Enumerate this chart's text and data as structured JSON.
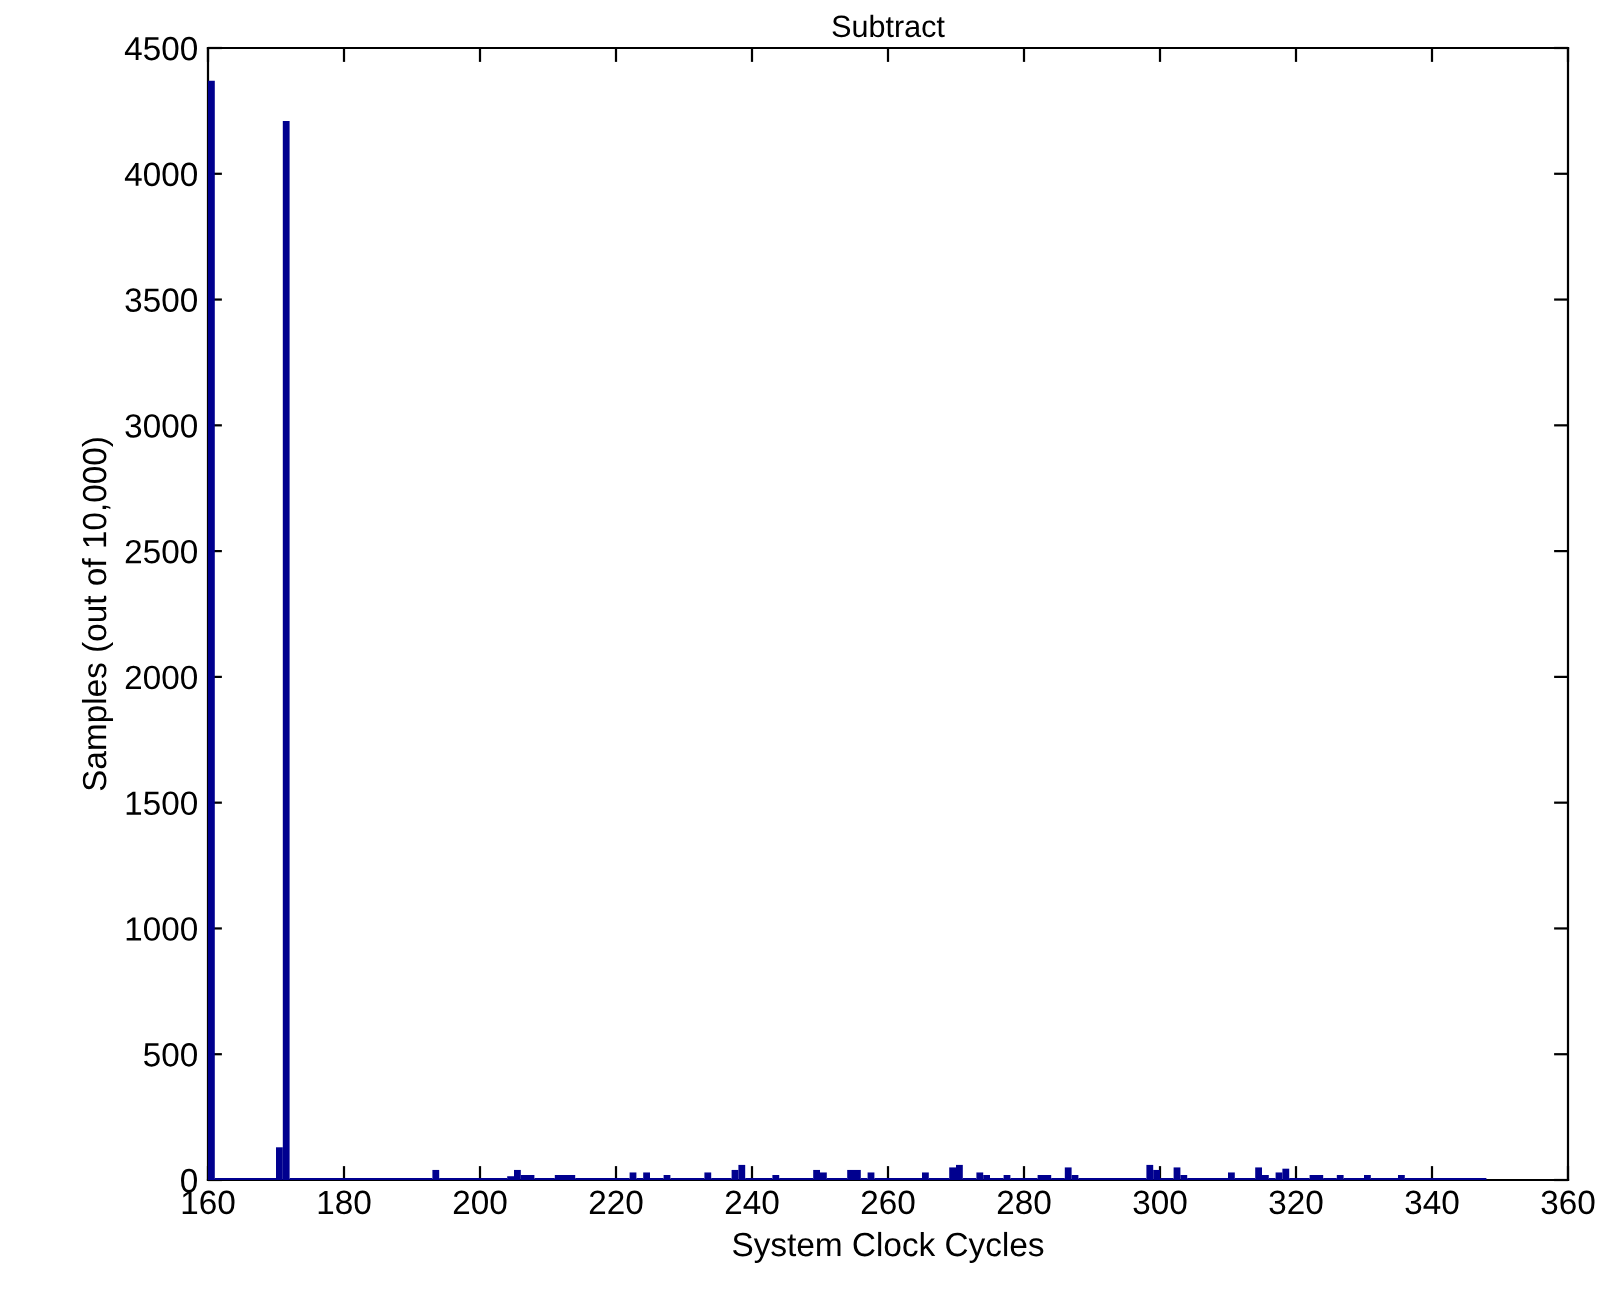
{
  "chart_data": {
    "type": "histogram",
    "title": "Subtract",
    "xlabel": "System Clock Cycles",
    "ylabel": "Samples (out of 10,000)",
    "color": "#00008f",
    "bins": [
      160,
      161,
      170,
      171,
      172,
      193,
      194,
      204,
      205,
      206,
      208,
      211,
      214,
      222,
      223,
      224,
      225,
      227,
      228,
      233,
      234,
      237,
      238,
      239,
      243,
      244,
      249,
      250,
      251,
      254,
      256,
      257,
      258,
      265,
      266,
      269,
      270,
      271,
      273,
      274,
      275,
      277,
      278,
      282,
      284,
      286,
      287,
      288,
      298,
      299,
      300,
      302,
      303,
      304,
      310,
      311,
      314,
      315,
      316,
      317,
      318,
      319,
      322,
      324,
      326,
      327,
      330,
      331,
      335,
      336,
      348
    ],
    "values": [
      4370,
      0,
      130,
      4210,
      0,
      40,
      0,
      15,
      40,
      20,
      0,
      20,
      0,
      30,
      0,
      30,
      0,
      20,
      0,
      30,
      0,
      40,
      60,
      0,
      20,
      0,
      40,
      30,
      0,
      40,
      0,
      30,
      0,
      30,
      0,
      50,
      60,
      0,
      30,
      20,
      0,
      20,
      0,
      20,
      0,
      50,
      20,
      0,
      60,
      40,
      0,
      50,
      20,
      0,
      30,
      0,
      50,
      20,
      0,
      30,
      45,
      0,
      20,
      0,
      20,
      0,
      20,
      0,
      20,
      0
    ],
    "xlim": [
      160,
      360
    ],
    "xticks": [
      160,
      180,
      200,
      220,
      240,
      260,
      280,
      300,
      320,
      340,
      360
    ],
    "ylim": [
      0,
      4500
    ],
    "yticks": [
      0,
      500,
      1000,
      1500,
      2000,
      2500,
      3000,
      3500,
      4000,
      4500
    ],
    "grid": false,
    "legend": false
  }
}
